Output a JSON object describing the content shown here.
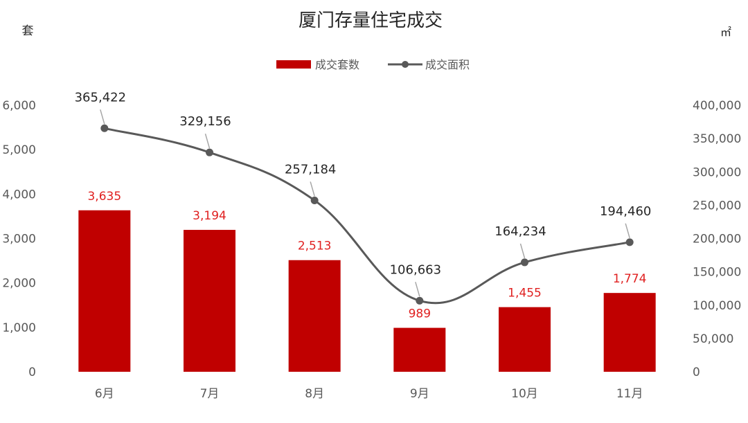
{
  "chart_data": {
    "type": "bar",
    "title": "厦门存量住宅成交",
    "y_left_unit": "套",
    "y_right_unit": "㎡",
    "categories": [
      "6月",
      "7月",
      "8月",
      "9月",
      "10月",
      "11月"
    ],
    "series": [
      {
        "name": "成交套数",
        "type": "bar",
        "axis": "left",
        "color": "#c00000",
        "values": [
          3635,
          3194,
          2513,
          989,
          1455,
          1774
        ],
        "labels": [
          "3,635",
          "3,194",
          "2,513",
          "989",
          "1,455",
          "1,774"
        ]
      },
      {
        "name": "成交面积",
        "type": "line",
        "axis": "right",
        "color": "#595959",
        "smooth": true,
        "values": [
          365422,
          329156,
          257184,
          106663,
          164234,
          194460
        ],
        "labels": [
          "365,422",
          "329,156",
          "257,184",
          "106,663",
          "164,234",
          "194,460"
        ]
      }
    ],
    "y_left": {
      "min": 0,
      "max": 6000,
      "step": 1000,
      "ticks": [
        "0",
        "1,000",
        "2,000",
        "3,000",
        "4,000",
        "5,000",
        "6,000"
      ]
    },
    "y_right": {
      "min": 0,
      "max": 400000,
      "step": 50000,
      "ticks": [
        "0",
        "50,000",
        "100,000",
        "150,000",
        "200,000",
        "250,000",
        "300,000",
        "350,000",
        "400,000"
      ]
    },
    "legend_position": "top-center",
    "grid": false
  }
}
